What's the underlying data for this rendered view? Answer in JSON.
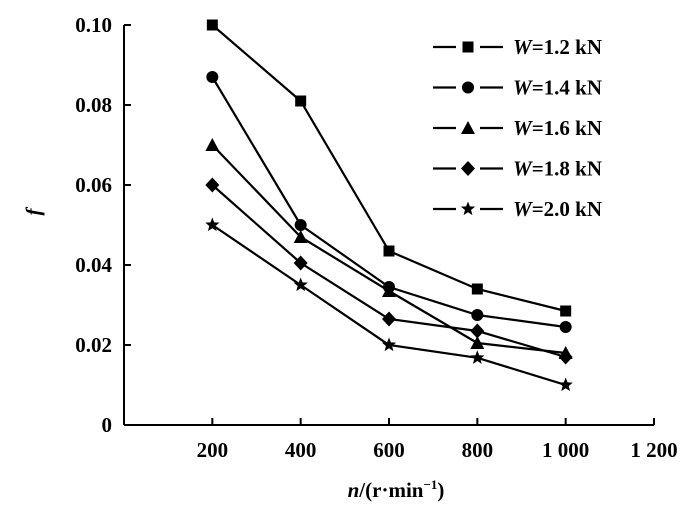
{
  "chart_data": {
    "type": "line",
    "xlabel_italic": "n",
    "xlabel_rest": "/(r·min",
    "xlabel_sup": "−1",
    "xlabel_close": ")",
    "ylabel": "f",
    "xlim": [
      0,
      1200
    ],
    "ylim": [
      0,
      0.1
    ],
    "x_ticks": [
      200,
      400,
      600,
      800,
      1000,
      1200
    ],
    "x_tick_labels": [
      "200",
      "400",
      "600",
      "800",
      "1 000",
      "1 200"
    ],
    "y_ticks": [
      0,
      0.02,
      0.04,
      0.06,
      0.08,
      0.1
    ],
    "y_tick_labels": [
      "0",
      "0.02",
      "0.04",
      "0.06",
      "0.08",
      "0.10"
    ],
    "grid": false,
    "legend_position": "top-right",
    "x": [
      200,
      400,
      600,
      800,
      1000
    ],
    "series": [
      {
        "name_var": "W",
        "name_value": "=1.2 kN",
        "marker": "square",
        "values": [
          0.1,
          0.081,
          0.0435,
          0.034,
          0.0285
        ]
      },
      {
        "name_var": "W",
        "name_value": "=1.4 kN",
        "marker": "circle",
        "values": [
          0.087,
          0.05,
          0.0345,
          0.0275,
          0.0245
        ]
      },
      {
        "name_var": "W",
        "name_value": "=1.6 kN",
        "marker": "triangle",
        "values": [
          0.07,
          0.047,
          0.0335,
          0.0205,
          0.018
        ]
      },
      {
        "name_var": "W",
        "name_value": "=1.8 kN",
        "marker": "diamond",
        "values": [
          0.06,
          0.0405,
          0.0265,
          0.0235,
          0.017
        ]
      },
      {
        "name_var": "W",
        "name_value": "=2.0 kN",
        "marker": "star",
        "values": [
          0.05,
          0.035,
          0.02,
          0.0168,
          0.01
        ]
      }
    ]
  }
}
